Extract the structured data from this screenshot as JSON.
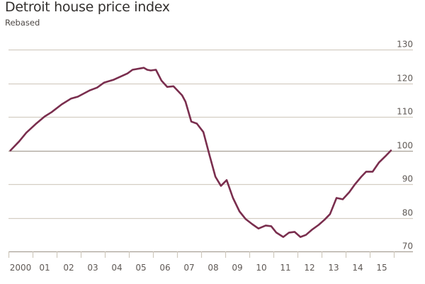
{
  "chart_data": {
    "type": "line",
    "title": "Detroit house price index",
    "subtitle": "Rebased",
    "xlabel": "",
    "ylabel": "",
    "ylim": [
      70,
      130
    ],
    "yticks": [
      70,
      80,
      90,
      100,
      110,
      120,
      130
    ],
    "ytick_labels": [
      "70",
      "80",
      "90",
      "100",
      "110",
      "120",
      "130"
    ],
    "xlim": [
      2000,
      2016
    ],
    "xtick_labels": [
      "2000",
      "01",
      "02",
      "03",
      "04",
      "05",
      "06",
      "07",
      "08",
      "09",
      "10",
      "11",
      "12",
      "13",
      "14",
      "15"
    ],
    "grid": true,
    "baseline": 100,
    "line_color": "#7a2e4e",
    "grid_color": "#d4cdc3",
    "baseline_color": "#a8a196",
    "series": [
      {
        "name": "Detroit house price index",
        "x": [
          2000.08,
          2000.44,
          2000.74,
          2001.12,
          2001.5,
          2001.79,
          2002.21,
          2002.59,
          2002.88,
          2003.38,
          2003.68,
          2003.97,
          2004.35,
          2004.94,
          2005.15,
          2005.62,
          2005.76,
          2005.91,
          2006.12,
          2006.35,
          2006.59,
          2006.85,
          2007.21,
          2007.35,
          2007.59,
          2007.82,
          2008.09,
          2008.35,
          2008.59,
          2008.82,
          2009.06,
          2009.32,
          2009.59,
          2009.85,
          2010.12,
          2010.38,
          2010.68,
          2010.91,
          2011.12,
          2011.41,
          2011.65,
          2011.88,
          2012.12,
          2012.35,
          2012.59,
          2012.88,
          2013.12,
          2013.35,
          2013.62,
          2013.88,
          2014.15,
          2014.38,
          2014.65,
          2014.85,
          2015.12,
          2015.38,
          2015.65,
          2015.88
        ],
        "values": [
          100,
          102.7,
          105.3,
          107.8,
          110.1,
          111.4,
          113.7,
          115.4,
          116,
          117.9,
          118.7,
          120.2,
          121,
          122.9,
          124,
          124.6,
          124,
          123.8,
          124,
          120.8,
          118.9,
          119.1,
          116.4,
          114.5,
          108.6,
          108,
          105.5,
          98.5,
          92.2,
          89.5,
          91.2,
          85.9,
          81.9,
          79.6,
          78.1,
          76.8,
          77.7,
          77.5,
          75.6,
          74.3,
          75.6,
          75.8,
          74.3,
          74.9,
          76.4,
          77.9,
          79.4,
          81.1,
          85.9,
          85.5,
          87.6,
          89.9,
          92.2,
          93.7,
          93.7,
          96.4,
          98.3,
          100
        ]
      }
    ]
  }
}
